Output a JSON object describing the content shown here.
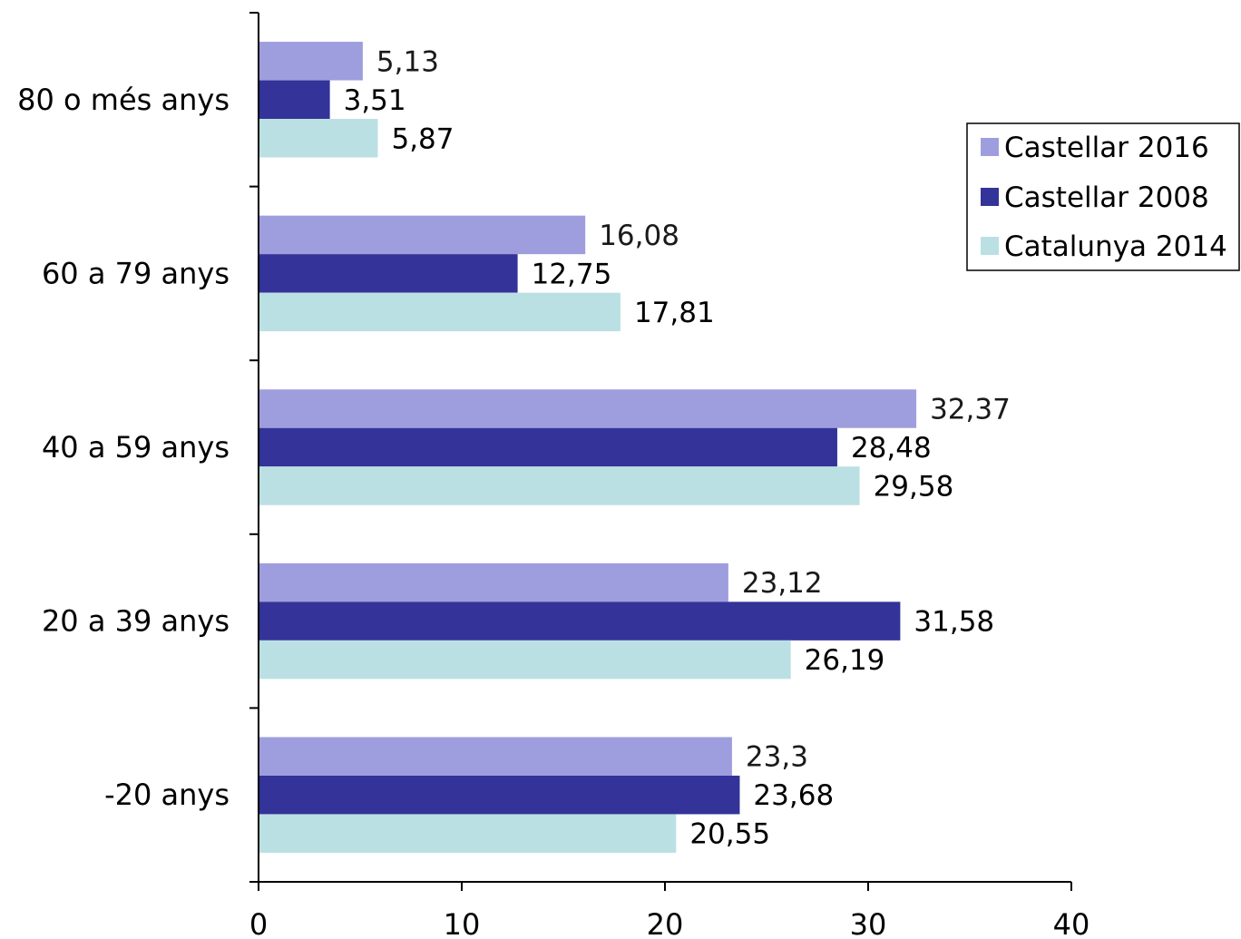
{
  "chart_data": {
    "type": "bar",
    "orientation": "horizontal",
    "categories": [
      "80 o més anys",
      "60 a 79 anys",
      "40 a 59 anys",
      "20 a 39 anys",
      "-20 anys"
    ],
    "series": [
      {
        "name": "Castellar 2016",
        "color": "#9e9ede",
        "values": [
          5.13,
          16.08,
          32.37,
          23.12,
          23.3
        ],
        "labels": [
          "5,13",
          "16,08",
          "32,37",
          "23,12",
          "23,3"
        ],
        "label_color": "#1a1a1a"
      },
      {
        "name": "Castellar 2008",
        "color": "#333399",
        "values": [
          3.51,
          12.75,
          28.48,
          31.58,
          23.68
        ],
        "labels": [
          "3,51",
          "12,75",
          "28,48",
          "31,58",
          "23,68"
        ],
        "label_color": "#000000"
      },
      {
        "name": "Catalunya 2014",
        "color": "#bbe0e3",
        "values": [
          5.87,
          17.81,
          29.58,
          26.19,
          20.55
        ],
        "labels": [
          "5,87",
          "17,81",
          "29,58",
          "26,19",
          "20,55"
        ],
        "label_color": "#000000"
      }
    ],
    "xlim": [
      0,
      40
    ],
    "xticks": [
      "0",
      "10",
      "20",
      "30",
      "40"
    ],
    "grid": false,
    "legend_position": "right"
  }
}
